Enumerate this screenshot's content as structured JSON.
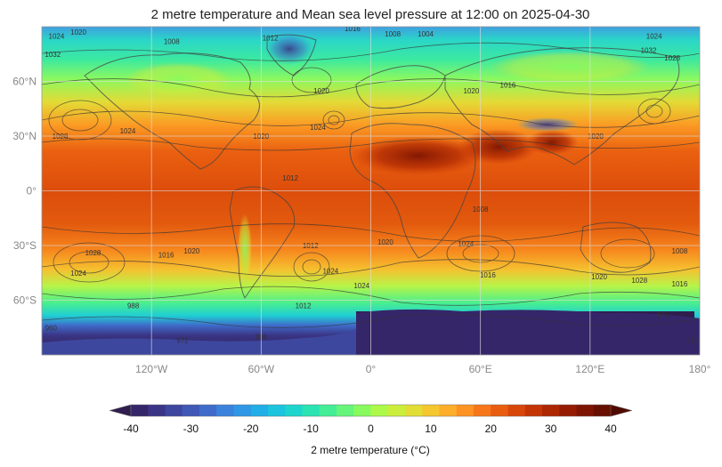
{
  "title": "2 metre temperature and Mean sea level pressure at 12:00 on 2025-04-30",
  "map": {
    "lon_ticks": [
      "120°W",
      "60°W",
      "0°",
      "60°E",
      "120°E",
      "180°"
    ],
    "lon_values": [
      -120,
      -60,
      0,
      60,
      120,
      180
    ],
    "lat_ticks": [
      "60°N",
      "30°N",
      "0°",
      "30°S",
      "60°S"
    ],
    "lat_values": [
      60,
      30,
      0,
      -30,
      -60
    ],
    "lon_range": [
      -180,
      180
    ],
    "lat_range": [
      -90,
      90
    ],
    "grid": true,
    "isobar_labels": [
      {
        "text": "1020",
        "lon": -160,
        "lat": 87
      },
      {
        "text": "1024",
        "lon": -172,
        "lat": 85
      },
      {
        "text": "1008",
        "lon": -109,
        "lat": 82
      },
      {
        "text": "1012",
        "lon": -55,
        "lat": 84
      },
      {
        "text": "1016",
        "lon": -10,
        "lat": 89
      },
      {
        "text": "1008",
        "lon": 12,
        "lat": 86
      },
      {
        "text": "1004",
        "lon": 30,
        "lat": 86
      },
      {
        "text": "1024",
        "lon": 155,
        "lat": 85
      },
      {
        "text": "1028",
        "lon": 165,
        "lat": 73
      },
      {
        "text": "1032",
        "lon": -174,
        "lat": 75
      },
      {
        "text": "1032",
        "lon": 152,
        "lat": 77
      },
      {
        "text": "1020",
        "lon": -27,
        "lat": 55
      },
      {
        "text": "1016",
        "lon": 75,
        "lat": 58
      },
      {
        "text": "1020",
        "lon": 55,
        "lat": 55
      },
      {
        "text": "1028",
        "lon": -170,
        "lat": 30
      },
      {
        "text": "1024",
        "lon": -133,
        "lat": 33
      },
      {
        "text": "1020",
        "lon": -60,
        "lat": 30
      },
      {
        "text": "1024",
        "lon": -29,
        "lat": 35
      },
      {
        "text": "1020",
        "lon": 123,
        "lat": 30
      },
      {
        "text": "1012",
        "lon": -44,
        "lat": 7
      },
      {
        "text": "1008",
        "lon": 60,
        "lat": -10
      },
      {
        "text": "1012",
        "lon": -33,
        "lat": -30
      },
      {
        "text": "1016",
        "lon": -112,
        "lat": -35
      },
      {
        "text": "1020",
        "lon": -98,
        "lat": -33
      },
      {
        "text": "1028",
        "lon": -152,
        "lat": -34
      },
      {
        "text": "1024",
        "lon": -160,
        "lat": -45
      },
      {
        "text": "1020",
        "lon": 8,
        "lat": -28
      },
      {
        "text": "1024",
        "lon": 52,
        "lat": -29
      },
      {
        "text": "1024",
        "lon": -22,
        "lat": -44
      },
      {
        "text": "1024",
        "lon": -5,
        "lat": -52
      },
      {
        "text": "1016",
        "lon": 64,
        "lat": -46
      },
      {
        "text": "1012",
        "lon": -37,
        "lat": -63
      },
      {
        "text": "1020",
        "lon": 125,
        "lat": -47
      },
      {
        "text": "1028",
        "lon": 147,
        "lat": -49
      },
      {
        "text": "1016",
        "lon": 169,
        "lat": -51
      },
      {
        "text": "1008",
        "lon": 169,
        "lat": -33
      },
      {
        "text": "960",
        "lon": -175,
        "lat": -75
      },
      {
        "text": "988",
        "lon": -130,
        "lat": -63
      },
      {
        "text": "972",
        "lon": -103,
        "lat": -82
      },
      {
        "text": "984",
        "lon": -60,
        "lat": -80
      },
      {
        "text": "976",
        "lon": 160,
        "lat": -68
      },
      {
        "text": "972",
        "lon": 176,
        "lat": -82
      }
    ]
  },
  "colorbar": {
    "label": "2 metre temperature (°C)",
    "tick_labels": [
      "-40",
      "-30",
      "-20",
      "-10",
      "0",
      "10",
      "20",
      "30",
      "40"
    ],
    "range": [
      -40,
      40
    ],
    "step": 2.5,
    "extend": "both",
    "colors": [
      "#2f1e4e",
      "#35266a",
      "#3a3585",
      "#3e479e",
      "#4058b6",
      "#3f6cca",
      "#3a82dc",
      "#2f97e6",
      "#22aee6",
      "#1cc4de",
      "#1dd5cc",
      "#2ae3b2",
      "#43ee96",
      "#64f57a",
      "#88fa5e",
      "#acf94a",
      "#cbee3c",
      "#e2dd35",
      "#f4c72f",
      "#fdae2a",
      "#fd9322",
      "#f67619",
      "#e95d10",
      "#d8470a",
      "#c43506",
      "#ad2703",
      "#951c02",
      "#7e1402",
      "#671001",
      "#500b01"
    ]
  },
  "legend_placement": "bottom-center",
  "fields": [
    "2 metre temperature",
    "Mean sea level pressure"
  ],
  "valid_time": "12:00 on 2025-04-30"
}
